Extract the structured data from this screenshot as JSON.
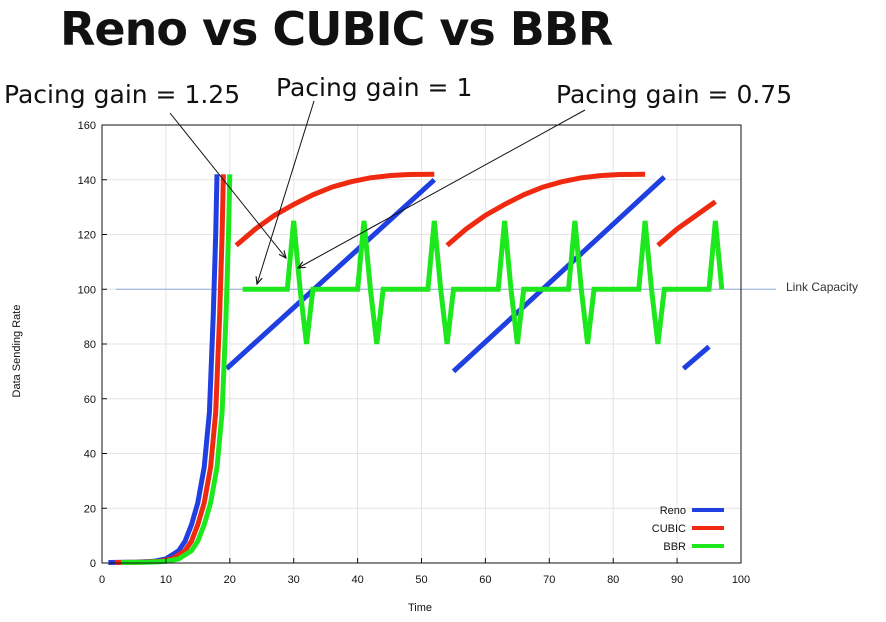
{
  "slide_title": "Reno vs CUBIC vs BBR",
  "annotations": [
    "Pacing gain = 1.25",
    "Pacing gain = 1",
    "Pacing gain = 0.75"
  ],
  "link_capacity_label": "Link Capacity",
  "chart_data": {
    "type": "line",
    "title": "",
    "xlabel": "Time",
    "ylabel": "Data Sending Rate",
    "xlim": [
      0,
      100
    ],
    "ylim": [
      0,
      160
    ],
    "xticks": [
      0,
      10,
      20,
      30,
      40,
      50,
      60,
      70,
      80,
      90,
      100
    ],
    "yticks": [
      0,
      20,
      40,
      60,
      80,
      100,
      120,
      140,
      160
    ],
    "grid": true,
    "legend": "bottom-right",
    "reference_line": {
      "y": 100,
      "label": "Link Capacity",
      "color": "#8fa8d8"
    },
    "series": [
      {
        "name": "Reno",
        "color": "#1f3fe0",
        "segments": [
          [
            [
              1,
              0.2
            ],
            [
              5,
              0.3
            ],
            [
              8,
              0.6
            ],
            [
              10,
              1.5
            ],
            [
              11,
              3
            ],
            [
              12,
              4.5
            ],
            [
              13,
              8
            ],
            [
              14,
              14
            ],
            [
              15,
              22
            ],
            [
              16,
              35
            ],
            [
              16.8,
              55
            ],
            [
              17.4,
              90
            ],
            [
              17.8,
              120
            ],
            [
              18,
              142
            ]
          ],
          [
            [
              19.5,
              71
            ],
            [
              52,
              140
            ]
          ],
          [
            [
              55,
              70
            ],
            [
              88,
              141
            ]
          ],
          [
            [
              91,
              71
            ],
            [
              95,
              79
            ]
          ]
        ]
      },
      {
        "name": "CUBIC",
        "color": "#f02a10",
        "segments": [
          [
            [
              2,
              0.2
            ],
            [
              6,
              0.3
            ],
            [
              9,
              0.6
            ],
            [
              11,
              1.5
            ],
            [
              12,
              3
            ],
            [
              13,
              4.5
            ],
            [
              14,
              8
            ],
            [
              15,
              14
            ],
            [
              16,
              22
            ],
            [
              17,
              35
            ],
            [
              17.8,
              55
            ],
            [
              18.4,
              90
            ],
            [
              18.8,
              120
            ],
            [
              19,
              142
            ]
          ],
          [
            [
              21,
              116
            ],
            [
              24,
              122
            ],
            [
              27,
              127
            ],
            [
              30,
              131
            ],
            [
              33,
              134.5
            ],
            [
              36,
              137.3
            ],
            [
              39,
              139.3
            ],
            [
              42,
              140.7
            ],
            [
              45,
              141.5
            ],
            [
              48,
              141.9
            ],
            [
              52,
              142
            ]
          ],
          [
            [
              54,
              116
            ],
            [
              57,
              122
            ],
            [
              60,
              127
            ],
            [
              63,
              131
            ],
            [
              66,
              134.5
            ],
            [
              69,
              137.3
            ],
            [
              72,
              139.3
            ],
            [
              75,
              140.7
            ],
            [
              78,
              141.5
            ],
            [
              81,
              141.9
            ],
            [
              85,
              142
            ]
          ],
          [
            [
              87,
              116
            ],
            [
              90,
              122
            ],
            [
              93,
              127
            ],
            [
              96,
              132
            ]
          ]
        ]
      },
      {
        "name": "BBR",
        "color": "#1de81d",
        "segments": [
          [
            [
              3,
              0.2
            ],
            [
              7,
              0.3
            ],
            [
              10,
              0.6
            ],
            [
              12,
              1.5
            ],
            [
              13,
              3
            ],
            [
              14,
              4.5
            ],
            [
              15,
              8
            ],
            [
              16,
              14
            ],
            [
              17,
              22
            ],
            [
              18,
              35
            ],
            [
              18.8,
              55
            ],
            [
              19.4,
              90
            ],
            [
              19.8,
              120
            ],
            [
              20,
              142
            ]
          ],
          [
            [
              22,
              100
            ],
            [
              29,
              100
            ],
            [
              30,
              125
            ],
            [
              31,
              100
            ],
            [
              32,
              80
            ],
            [
              33,
              100
            ],
            [
              40,
              100
            ],
            [
              41,
              125
            ],
            [
              42,
              100
            ],
            [
              43,
              80
            ],
            [
              44,
              100
            ],
            [
              51,
              100
            ],
            [
              52,
              125
            ],
            [
              53,
              100
            ],
            [
              54,
              80
            ],
            [
              55,
              100
            ],
            [
              62,
              100
            ],
            [
              63,
              125
            ],
            [
              64,
              100
            ],
            [
              65,
              80
            ],
            [
              66,
              100
            ],
            [
              73,
              100
            ],
            [
              74,
              125
            ],
            [
              75,
              100
            ],
            [
              76,
              80
            ],
            [
              77,
              100
            ],
            [
              84,
              100
            ],
            [
              85,
              125
            ],
            [
              86,
              100
            ],
            [
              87,
              80
            ],
            [
              88,
              100
            ],
            [
              95,
              100
            ],
            [
              96,
              125
            ],
            [
              97,
              100
            ]
          ]
        ]
      }
    ]
  }
}
